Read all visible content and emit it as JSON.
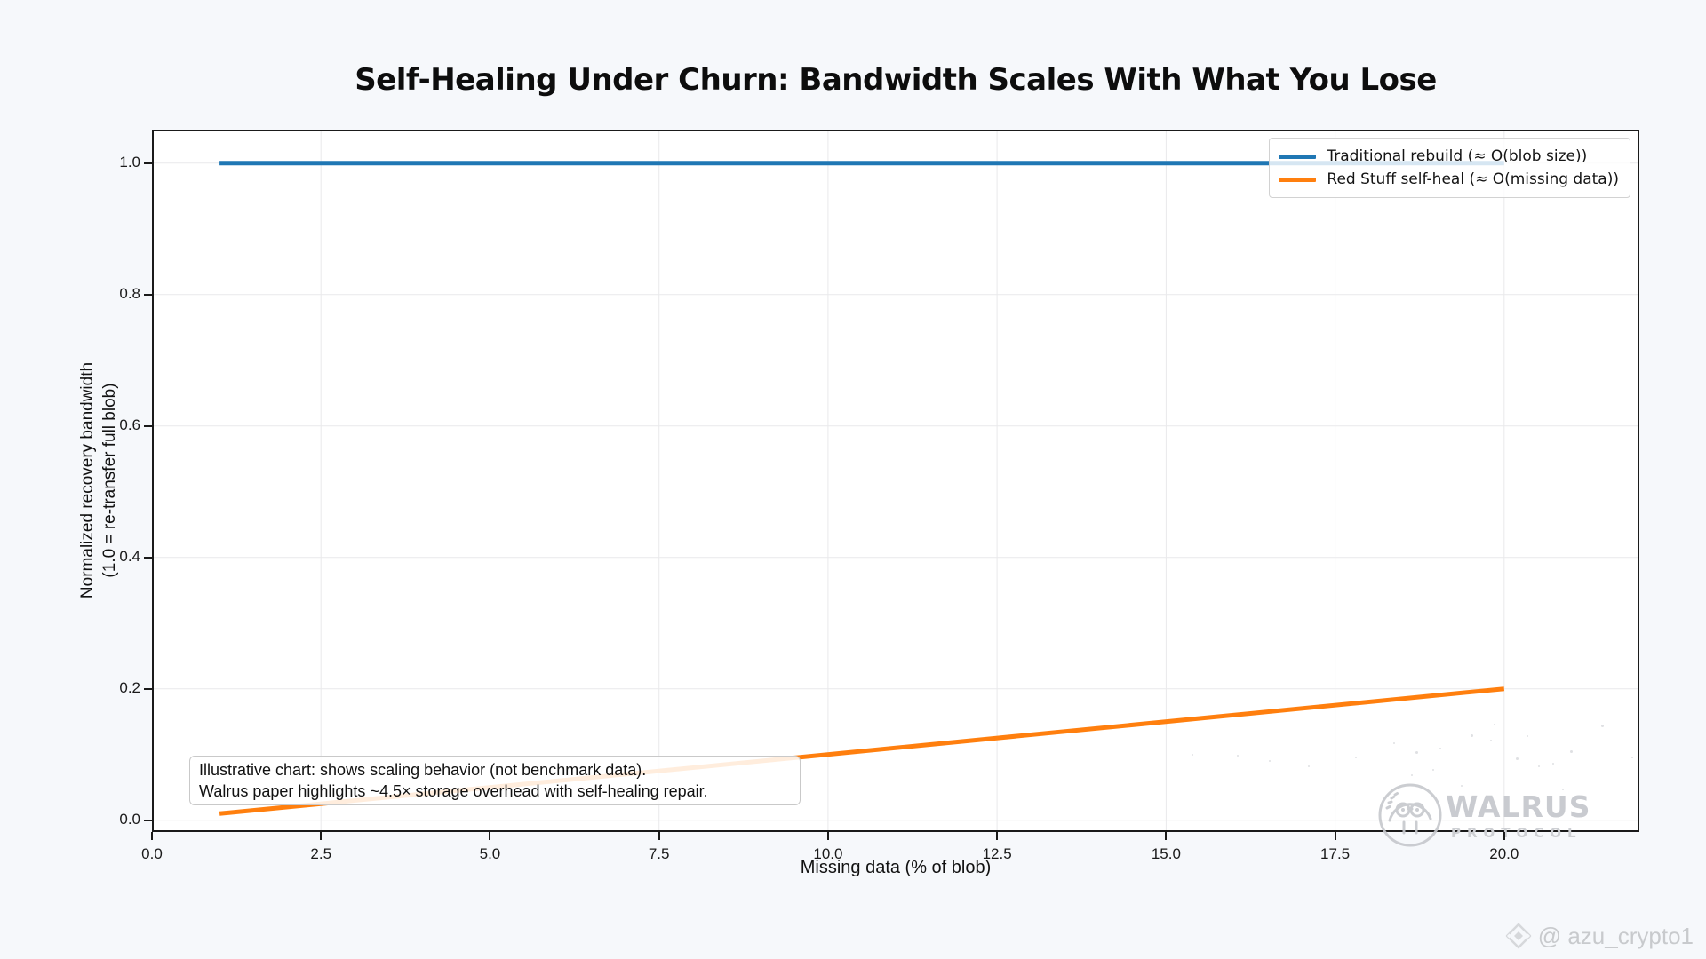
{
  "title": "Self-Healing Under Churn: Bandwidth Scales With What You Lose",
  "chart_data": {
    "type": "line",
    "title": "Self-Healing Under Churn: Bandwidth Scales With What You Lose",
    "xlabel": "Missing data (% of blob)",
    "ylabel_line1": "Normalized recovery bandwidth",
    "ylabel_line2": "(1.0 = re-transfer full blob)",
    "xlim": [
      0,
      22
    ],
    "ylim": [
      -0.018,
      1.051
    ],
    "x_ticks": [
      0.0,
      2.5,
      5.0,
      7.5,
      10.0,
      12.5,
      15.0,
      17.5,
      20.0
    ],
    "y_ticks": [
      0.0,
      0.2,
      0.4,
      0.6,
      0.8,
      1.0
    ],
    "grid": true,
    "legend_position": "upper right",
    "series": [
      {
        "name": "Traditional rebuild (≈ O(blob size))",
        "color": "#1f77b4",
        "x": [
          1,
          20
        ],
        "y": [
          1.0,
          1.0
        ]
      },
      {
        "name": "Red Stuff self-heal (≈ O(missing data))",
        "color": "#ff7f0e",
        "x": [
          1,
          20
        ],
        "y": [
          0.01,
          0.2
        ]
      }
    ],
    "annotation": {
      "line1": "Illustrative chart: shows scaling behavior (not benchmark data).",
      "line2": "Walrus paper highlights ~4.5× storage overhead with self-healing repair."
    }
  },
  "watermark": {
    "brand": "WALRUS",
    "subbrand": "PROTOCOL"
  },
  "credit": {
    "handle": "@ azu_crypto1"
  },
  "colors": {
    "blue": "#1f77b4",
    "orange": "#ff7f0e",
    "background": "#f6f8fb",
    "plot_background": "#ffffff",
    "spine": "#1a1a1a",
    "grid": "#e9e9eb",
    "watermark_gray": "#c9cbd0"
  }
}
